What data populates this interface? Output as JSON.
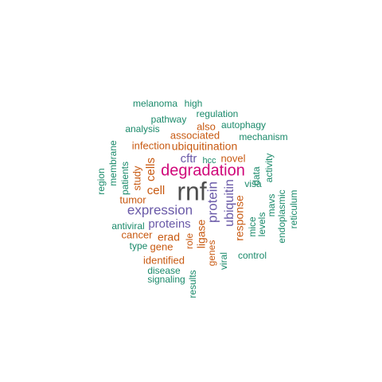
{
  "colors": {
    "gray": "#4d4d4d",
    "pink": "#d0087a",
    "purple": "#6a5aa8",
    "orange": "#c85a12",
    "green": "#1b8a6b"
  },
  "words": [
    {
      "text": "rnf",
      "color": "gray"
    },
    {
      "text": "degradation",
      "color": "pink"
    },
    {
      "text": "expression",
      "color": "purple"
    },
    {
      "text": "protein",
      "color": "purple"
    },
    {
      "text": "ubiquitin",
      "color": "purple"
    },
    {
      "text": "proteins",
      "color": "purple"
    },
    {
      "text": "ubiquitination",
      "color": "orange"
    },
    {
      "text": "cftr",
      "color": "purple"
    },
    {
      "text": "cells",
      "color": "orange"
    },
    {
      "text": "cell",
      "color": "orange"
    },
    {
      "text": "response",
      "color": "orange"
    },
    {
      "text": "ligase",
      "color": "orange"
    },
    {
      "text": "associated",
      "color": "orange"
    },
    {
      "text": "novel",
      "color": "orange"
    },
    {
      "text": "infection",
      "color": "orange"
    },
    {
      "text": "study",
      "color": "orange"
    },
    {
      "text": "erad",
      "color": "orange"
    },
    {
      "text": "tumor",
      "color": "orange"
    },
    {
      "text": "cancer",
      "color": "orange"
    },
    {
      "text": "gene",
      "color": "orange"
    },
    {
      "text": "identified",
      "color": "orange"
    },
    {
      "text": "also",
      "color": "orange"
    },
    {
      "text": "genes",
      "color": "orange"
    },
    {
      "text": "role",
      "color": "orange"
    },
    {
      "text": "hcc",
      "color": "green"
    },
    {
      "text": "melanoma",
      "color": "green"
    },
    {
      "text": "high",
      "color": "green"
    },
    {
      "text": "regulation",
      "color": "green"
    },
    {
      "text": "pathway",
      "color": "green"
    },
    {
      "text": "autophagy",
      "color": "green"
    },
    {
      "text": "analysis",
      "color": "green"
    },
    {
      "text": "mechanism",
      "color": "green"
    },
    {
      "text": "membrane",
      "color": "green"
    },
    {
      "text": "region",
      "color": "green"
    },
    {
      "text": "patients",
      "color": "green"
    },
    {
      "text": "data",
      "color": "green"
    },
    {
      "text": "activity",
      "color": "green"
    },
    {
      "text": "visa",
      "color": "green"
    },
    {
      "text": "mavs",
      "color": "green"
    },
    {
      "text": "endoplasmic",
      "color": "green"
    },
    {
      "text": "reticulum",
      "color": "green"
    },
    {
      "text": "levels",
      "color": "green"
    },
    {
      "text": "mice",
      "color": "green"
    },
    {
      "text": "antiviral",
      "color": "green"
    },
    {
      "text": "type",
      "color": "green"
    },
    {
      "text": "viral",
      "color": "green"
    },
    {
      "text": "control",
      "color": "green"
    },
    {
      "text": "disease",
      "color": "green"
    },
    {
      "text": "signaling",
      "color": "green"
    },
    {
      "text": "results",
      "color": "green"
    }
  ]
}
